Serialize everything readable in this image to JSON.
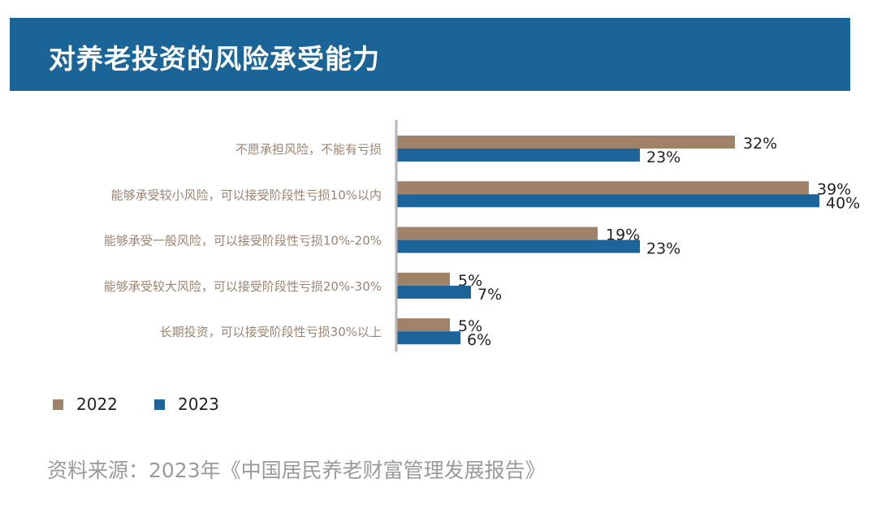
{
  "title": "对养老投资的风险承受能力",
  "source": "资料来源：2023年《中国居民养老财富管理发展报告》",
  "chart_data": {
    "type": "bar",
    "orientation": "horizontal",
    "categories": [
      "不愿承担风险，不能有亏损",
      "能够承受较小风险，可以接受阶段性亏损10%以内",
      "能够承受一般风险，可以接受阶段性亏损10%-20%",
      "能够承受较大风险，可以接受阶段性亏损20%-30%",
      "长期投资，可以接受阶段性亏损30%以上"
    ],
    "series": [
      {
        "name": "2022",
        "values": [
          32,
          39,
          19,
          5,
          5
        ],
        "labels": [
          "32%",
          "39%",
          "19%",
          "5%",
          "5%"
        ],
        "color": "#a08269"
      },
      {
        "name": "2023",
        "values": [
          23,
          40,
          23,
          7,
          6
        ],
        "labels": [
          "23%",
          "40%",
          "23%",
          "7%",
          "6%"
        ],
        "color": "#1c6499"
      }
    ],
    "unit": "%",
    "xlim": [
      0,
      40
    ],
    "grid": false,
    "legend_position": "bottom-left"
  }
}
